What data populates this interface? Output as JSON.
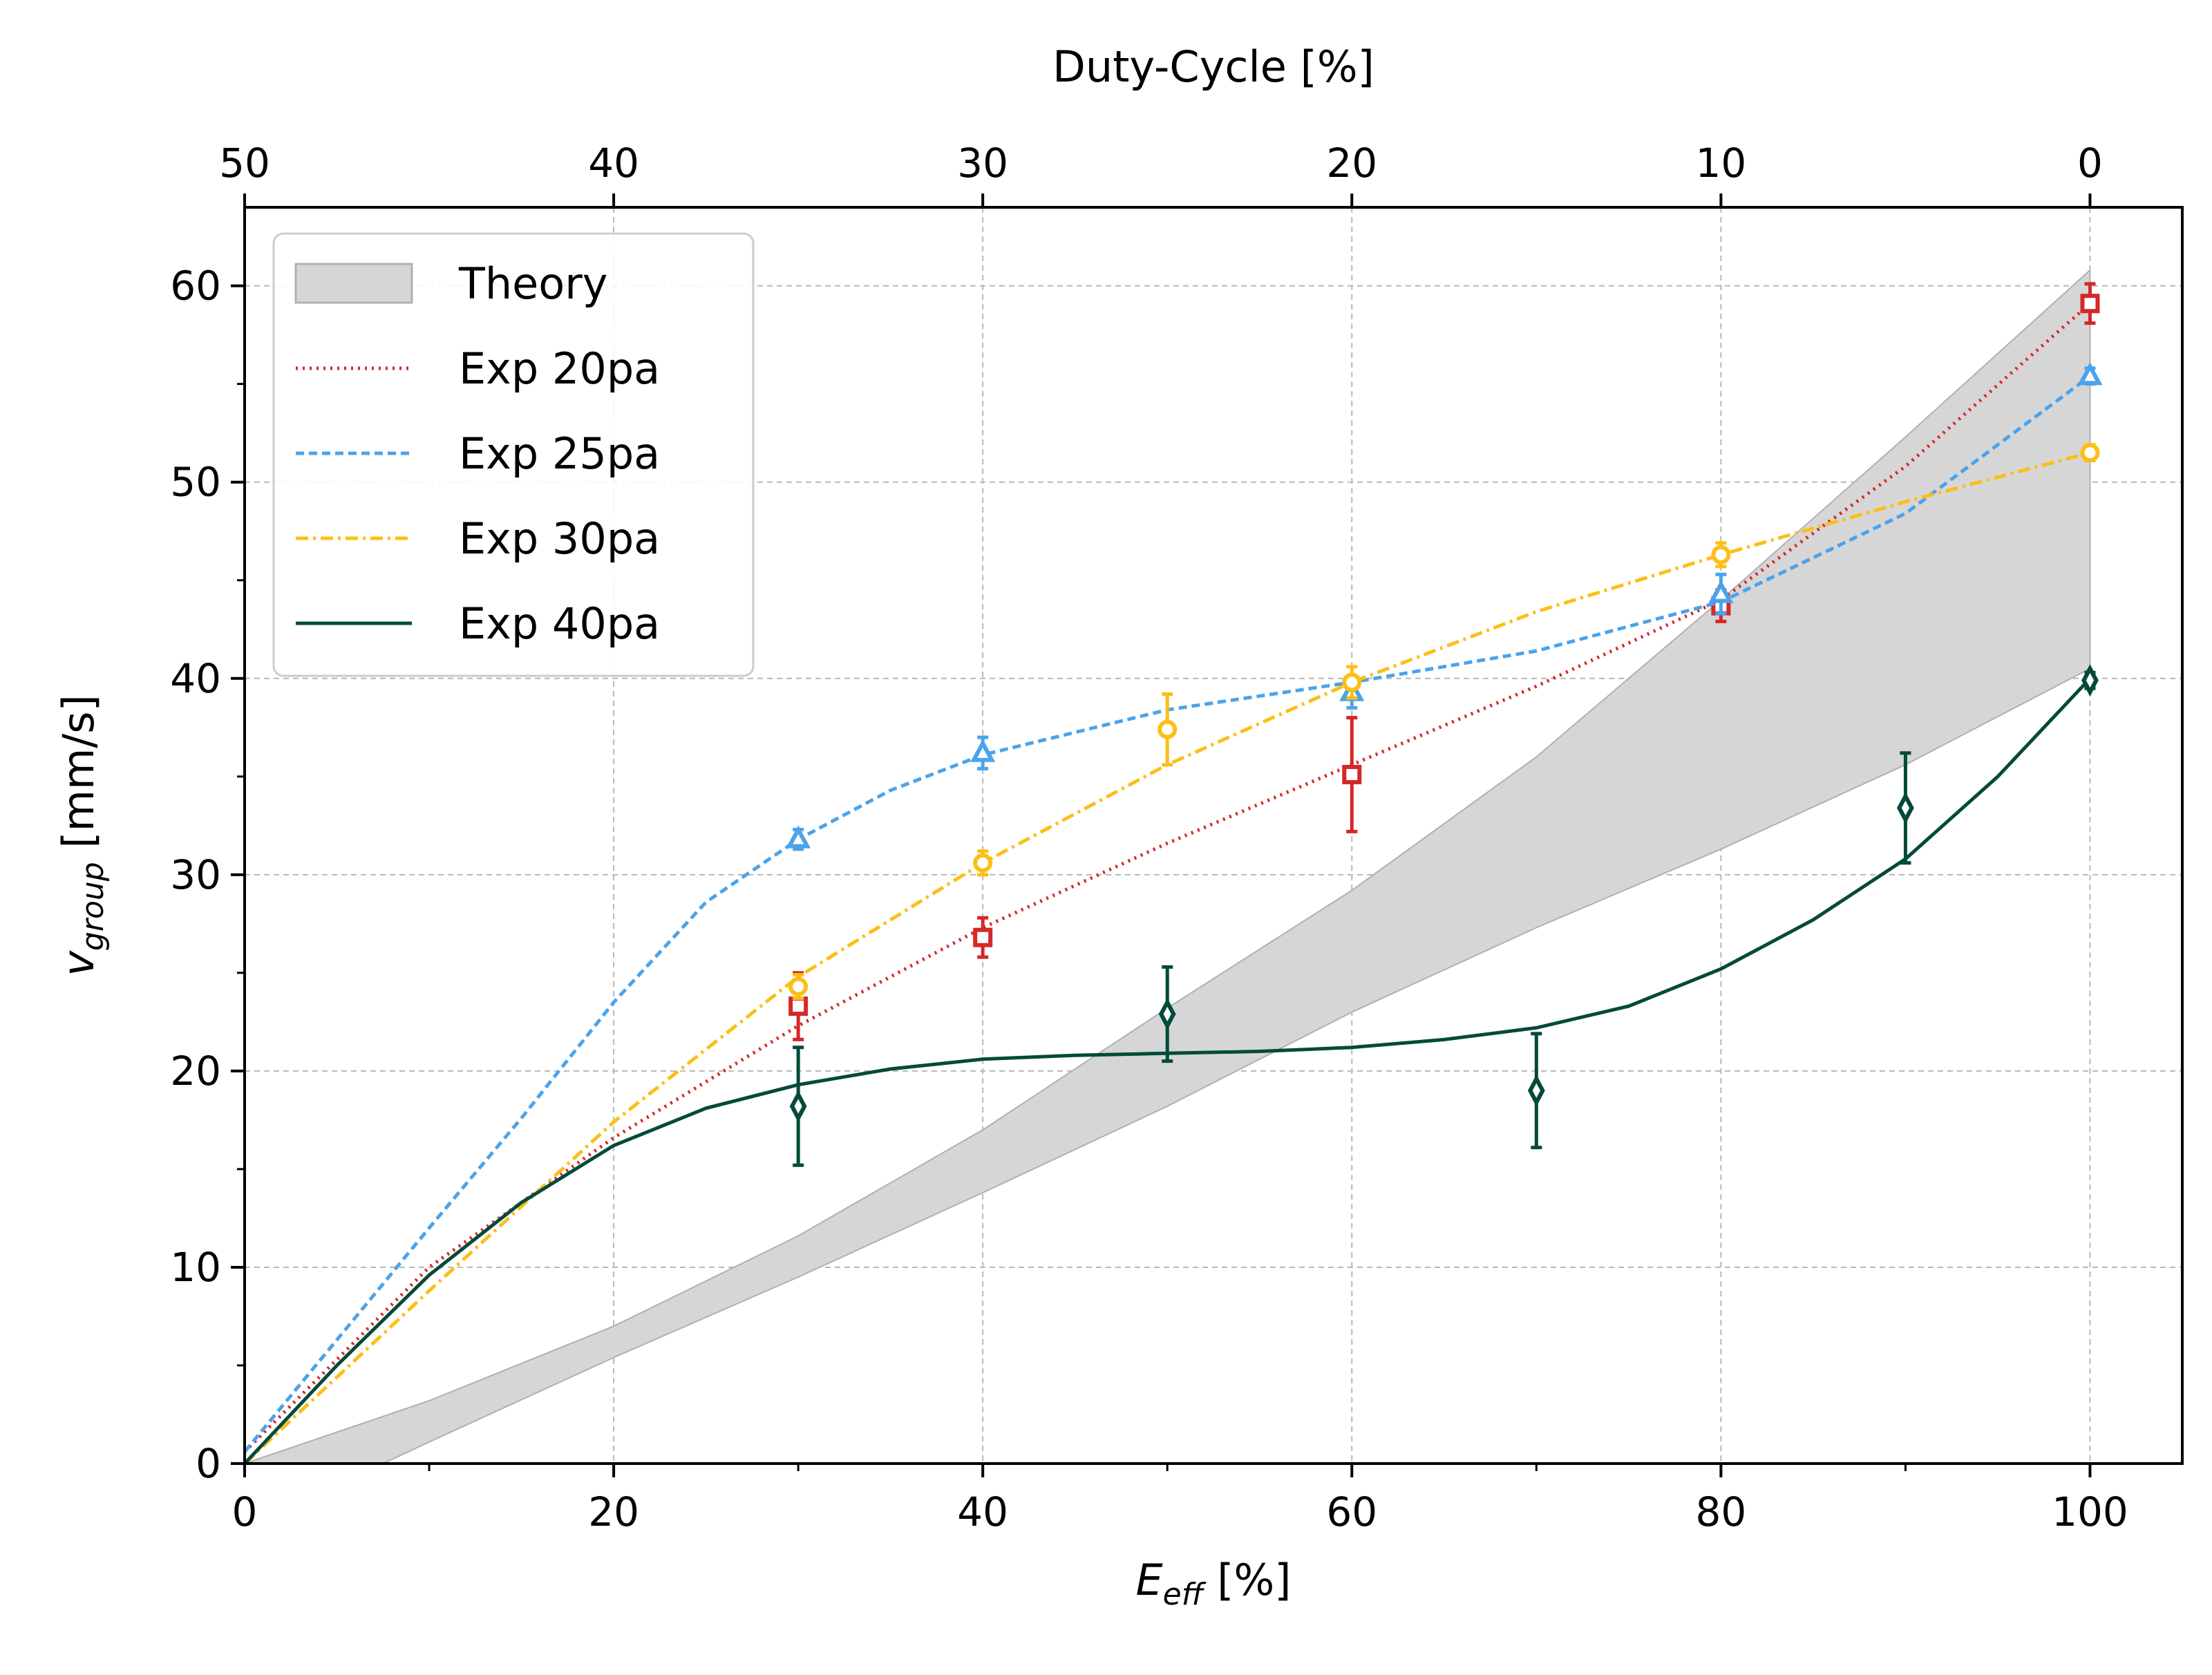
{
  "chart_data": {
    "type": "line",
    "xlabel_main": "E",
    "xlabel_sub": "eff",
    "xlabel_unit": " [%]",
    "ylabel_main": "v",
    "ylabel_sub": "group",
    "ylabel_unit": " [mm/s]",
    "top_xlabel": "Duty-Cycle [%]",
    "xlim": [
      0,
      105
    ],
    "ylim": [
      0,
      64
    ],
    "x_ticks": [
      "0",
      "20",
      "40",
      "60",
      "80",
      "100"
    ],
    "x_tick_values": [
      0,
      20,
      40,
      60,
      80,
      100
    ],
    "y_ticks": [
      "0",
      "10",
      "20",
      "30",
      "40",
      "50",
      "60"
    ],
    "y_tick_values": [
      0,
      10,
      20,
      30,
      40,
      50,
      60
    ],
    "top_ticks": [
      "50",
      "40",
      "30",
      "20",
      "10",
      "0"
    ],
    "top_tick_positions": [
      0,
      20,
      40,
      60,
      80,
      100
    ],
    "grid": true,
    "legend_position": "top-left",
    "theory": {
      "name": "Theory",
      "color": "#d6d6d6",
      "edge_color": "#b0b0b0",
      "upper": [
        [
          0,
          0
        ],
        [
          10,
          3.2
        ],
        [
          20,
          7
        ],
        [
          30,
          11.6
        ],
        [
          40,
          17
        ],
        [
          50,
          23.2
        ],
        [
          60,
          29.2
        ],
        [
          70,
          36
        ],
        [
          80,
          44
        ],
        [
          90,
          52.3
        ],
        [
          100,
          60.8
        ]
      ],
      "lower": [
        [
          0,
          0
        ],
        [
          7.5,
          0
        ],
        [
          10,
          1.1
        ],
        [
          20,
          5.4
        ],
        [
          30,
          9.5
        ],
        [
          40,
          13.8
        ],
        [
          50,
          18.2
        ],
        [
          60,
          23
        ],
        [
          70,
          27.3
        ],
        [
          80,
          31.3
        ],
        [
          90,
          35.6
        ],
        [
          100,
          40.5
        ]
      ]
    },
    "series": [
      {
        "name": "Exp 20pa",
        "color": "#d62728",
        "dash": "3,7",
        "marker": "square",
        "points": [
          {
            "x": 30,
            "y": 23.3,
            "err": 1.7
          },
          {
            "x": 40,
            "y": 26.8,
            "err": 1.0
          },
          {
            "x": 60,
            "y": 35.1,
            "err": 2.9
          },
          {
            "x": 80,
            "y": 43.7,
            "err": 0.8
          },
          {
            "x": 100,
            "y": 59.1,
            "err": 1.0
          }
        ],
        "fit": [
          [
            0,
            0.6
          ],
          [
            10,
            10
          ],
          [
            20,
            16.6
          ],
          [
            30,
            22.3
          ],
          [
            40,
            27.3
          ],
          [
            50,
            31.6
          ],
          [
            60,
            35.6
          ],
          [
            70,
            39.6
          ],
          [
            80,
            44
          ],
          [
            90,
            50.8
          ],
          [
            100,
            59.1
          ]
        ]
      },
      {
        "name": "Exp 25pa",
        "color": "#4ba3ea",
        "dash": "12,7",
        "marker": "triangle",
        "points": [
          {
            "x": 30,
            "y": 31.8,
            "err": 0.5
          },
          {
            "x": 40,
            "y": 36.2,
            "err": 0.8
          },
          {
            "x": 60,
            "y": 39.3,
            "err": 0.8
          },
          {
            "x": 80,
            "y": 44.3,
            "err": 1.0
          },
          {
            "x": 100,
            "y": 55.4,
            "err": 0.4
          }
        ],
        "fit": [
          [
            0,
            0.6
          ],
          [
            5,
            6.3
          ],
          [
            10,
            12
          ],
          [
            15,
            17.6
          ],
          [
            20,
            23.5
          ],
          [
            25,
            28.6
          ],
          [
            30,
            31.8
          ],
          [
            35,
            34.3
          ],
          [
            40,
            36.1
          ],
          [
            50,
            38.4
          ],
          [
            60,
            39.8
          ],
          [
            70,
            41.4
          ],
          [
            80,
            43.9
          ],
          [
            90,
            48.4
          ],
          [
            100,
            55.4
          ]
        ]
      },
      {
        "name": "Exp 30pa",
        "color": "#fbbf17",
        "dash": "18,7,4,7",
        "marker": "circle",
        "points": [
          {
            "x": 30,
            "y": 24.3,
            "err": 0.6
          },
          {
            "x": 40,
            "y": 30.6,
            "err": 0.6
          },
          {
            "x": 50,
            "y": 37.4,
            "err": 1.8
          },
          {
            "x": 60,
            "y": 39.8,
            "err": 0.8
          },
          {
            "x": 80,
            "y": 46.3,
            "err": 0.6
          },
          {
            "x": 100,
            "y": 51.5,
            "err": 0.4
          }
        ],
        "fit": [
          [
            0,
            0
          ],
          [
            10,
            8.8
          ],
          [
            20,
            17.4
          ],
          [
            30,
            24.8
          ],
          [
            40,
            30.6
          ],
          [
            50,
            35.6
          ],
          [
            60,
            39.8
          ],
          [
            70,
            43.4
          ],
          [
            80,
            46.3
          ],
          [
            90,
            49
          ],
          [
            100,
            51.5
          ]
        ]
      },
      {
        "name": "Exp 40pa",
        "color": "#024a3b",
        "dash": "",
        "marker": "diamond",
        "points": [
          {
            "x": 30,
            "y": 18.2,
            "err": 3.0
          },
          {
            "x": 50,
            "y": 22.9,
            "err": 2.4
          },
          {
            "x": 70,
            "y": 19.0,
            "err": 2.9
          },
          {
            "x": 90,
            "y": 33.4,
            "err": 2.8
          },
          {
            "x": 100,
            "y": 39.9,
            "err": 0.4
          }
        ],
        "fit": [
          [
            0,
            0
          ],
          [
            5,
            5
          ],
          [
            10,
            9.6
          ],
          [
            15,
            13.3
          ],
          [
            20,
            16.2
          ],
          [
            25,
            18.1
          ],
          [
            30,
            19.3
          ],
          [
            35,
            20.1
          ],
          [
            40,
            20.6
          ],
          [
            45,
            20.8
          ],
          [
            50,
            20.9
          ],
          [
            55,
            21.0
          ],
          [
            60,
            21.2
          ],
          [
            65,
            21.6
          ],
          [
            70,
            22.2
          ],
          [
            75,
            23.3
          ],
          [
            80,
            25.2
          ],
          [
            85,
            27.7
          ],
          [
            90,
            30.8
          ],
          [
            95,
            35
          ],
          [
            100,
            40
          ]
        ]
      }
    ]
  }
}
